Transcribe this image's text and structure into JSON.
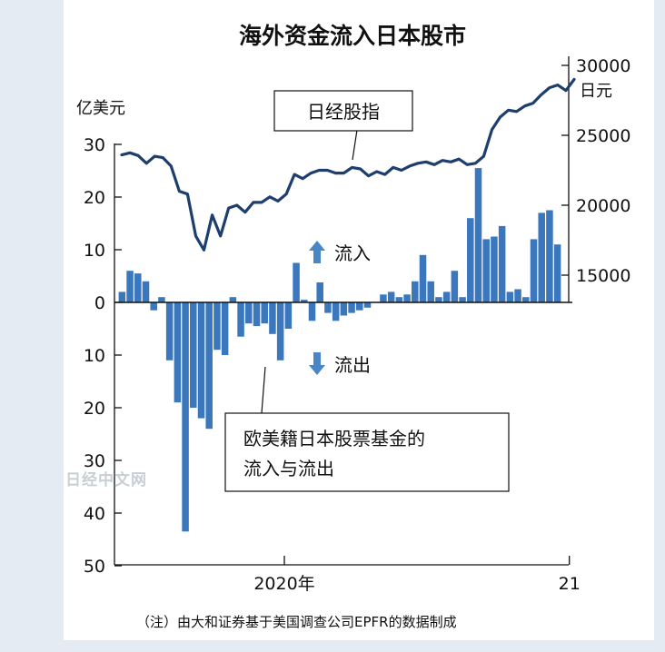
{
  "chart_data": {
    "type": "bar+line",
    "title": "海外资金流入日本股市",
    "left_axis": {
      "unit": "亿美元",
      "ticks": [
        {
          "value": 30,
          "label": "30"
        },
        {
          "value": 20,
          "label": "20"
        },
        {
          "value": 10,
          "label": "10"
        },
        {
          "value": 0,
          "label": "0"
        },
        {
          "value": -10,
          "label": "10"
        },
        {
          "value": -20,
          "label": "20"
        },
        {
          "value": -30,
          "label": "30"
        },
        {
          "value": -40,
          "label": "40"
        },
        {
          "value": -50,
          "label": "50"
        }
      ],
      "ylim": [
        -50,
        30
      ]
    },
    "right_axis": {
      "unit": "日元",
      "ticks": [
        {
          "value": 30000,
          "label": "30000"
        },
        {
          "value": 25000,
          "label": "25000"
        },
        {
          "value": 20000,
          "label": "20000"
        },
        {
          "value": 15000,
          "label": "15000"
        }
      ],
      "ylim": [
        14000,
        30000
      ]
    },
    "x_labels": [
      {
        "index": 21,
        "label": "2020年"
      },
      {
        "index": 57,
        "label": "21"
      }
    ],
    "flow_series": {
      "name": "欧美籍日本股票基金的流入与流出",
      "color": "#3a77bd",
      "values": [
        2,
        6,
        5.5,
        4,
        -1.5,
        1,
        -11,
        -19,
        -43.5,
        -20,
        -22,
        -24,
        -9,
        -10,
        1,
        -6.5,
        -4,
        -4.5,
        -4,
        -6,
        -11,
        -5,
        7.5,
        0.5,
        -3.5,
        3.8,
        -2,
        -3.5,
        -2.5,
        -2,
        -1.5,
        -1,
        0,
        1.5,
        2,
        1,
        1.5,
        4,
        9,
        4,
        1,
        2,
        6,
        1,
        16,
        25.5,
        12,
        12.5,
        14.5,
        2,
        2.5,
        1,
        12,
        17,
        17.5,
        11
      ]
    },
    "nikkei_series": {
      "name": "日经股指",
      "color": "#1e3f6e",
      "values": [
        23600,
        23750,
        23550,
        23000,
        23500,
        23400,
        22800,
        21000,
        20800,
        17800,
        16800,
        19300,
        17800,
        19800,
        20000,
        19500,
        20200,
        20200,
        20600,
        20300,
        20800,
        22200,
        21900,
        22300,
        22500,
        22500,
        22300,
        22300,
        22700,
        22600,
        22100,
        22400,
        22200,
        22700,
        22500,
        22800,
        23000,
        23100,
        22900,
        23200,
        23100,
        23300,
        22900,
        23000,
        23500,
        25400,
        26300,
        26800,
        26700,
        27100,
        27300,
        27900,
        28400,
        28600,
        28200,
        29000
      ]
    },
    "annotations": {
      "nikkei_label": "日经股指",
      "inflow_label": "流入",
      "outflow_label": "流出",
      "fund_label_line1": "欧美籍日本股票基金的",
      "fund_label_line2": "流入与流出"
    },
    "note": "（注）由大和证券基于美国调查公司EPFR的数据制成",
    "watermark": "日经中文网",
    "grid": false
  }
}
